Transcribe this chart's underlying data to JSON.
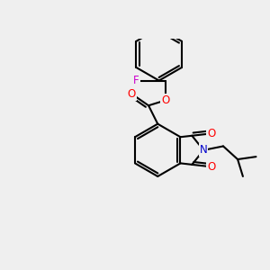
{
  "background_color": "#efefef",
  "bond_color": "#000000",
  "atom_colors": {
    "O": "#ff0000",
    "N": "#0000cc",
    "F": "#cc00cc",
    "C": "#000000"
  },
  "bond_width": 1.5,
  "font_size_atoms": 8.5
}
